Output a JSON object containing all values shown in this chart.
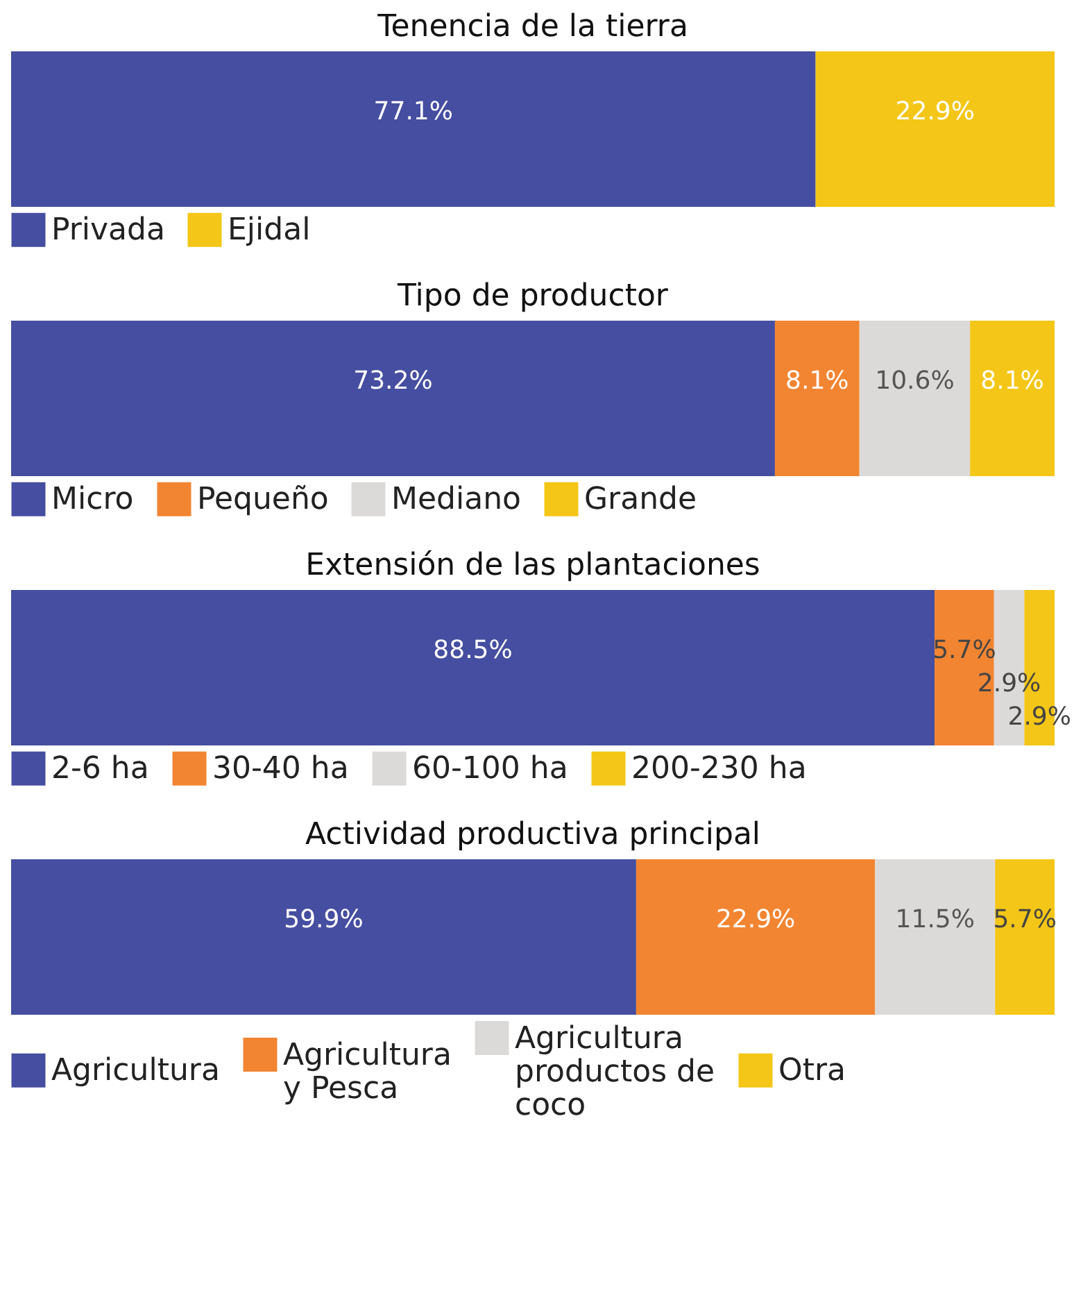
{
  "chart_data": [
    {
      "type": "bar",
      "title": "Tenencia de la tierra",
      "orientation": "horizontal",
      "stacked": true,
      "categories": [
        null
      ],
      "legend": "bottom",
      "series": [
        {
          "name": "Privada",
          "color": "#454ea0",
          "values": [
            77.1
          ],
          "value_labels": [
            "77.1%"
          ]
        },
        {
          "name": "Ejidal",
          "color": "#f4c617",
          "values": [
            22.9
          ],
          "value_labels": [
            "22.9%"
          ]
        }
      ]
    },
    {
      "type": "bar",
      "title": "Tipo de productor",
      "orientation": "horizontal",
      "stacked": true,
      "categories": [
        null
      ],
      "legend": "bottom",
      "series": [
        {
          "name": "Micro",
          "color": "#454ea0",
          "values": [
            73.2
          ],
          "value_labels": [
            "73.2%"
          ]
        },
        {
          "name": "Pequeño",
          "color": "#f28532",
          "values": [
            8.1
          ],
          "value_labels": [
            "8.1%"
          ]
        },
        {
          "name": "Mediano",
          "color": "#dcdad8",
          "values": [
            10.6
          ],
          "value_labels": [
            "10.6%"
          ]
        },
        {
          "name": "Grande",
          "color": "#f4c617",
          "values": [
            8.1
          ],
          "value_labels": [
            "8.1%"
          ]
        }
      ]
    },
    {
      "type": "bar",
      "title": "Extensión de las plantaciones",
      "orientation": "horizontal",
      "stacked": true,
      "categories": [
        null
      ],
      "legend": "bottom",
      "series": [
        {
          "name": "2-6 ha",
          "color": "#454ea0",
          "values": [
            88.5
          ],
          "value_labels": [
            "88.5%"
          ]
        },
        {
          "name": "30-40 ha",
          "color": "#f28532",
          "values": [
            5.7
          ],
          "value_labels": [
            "5.7%"
          ]
        },
        {
          "name": "60-100 ha",
          "color": "#dcdad8",
          "values": [
            2.9
          ],
          "value_labels": [
            "2.9%"
          ]
        },
        {
          "name": "200-230 ha",
          "color": "#f4c617",
          "values": [
            2.9
          ],
          "value_labels": [
            "2.9%"
          ]
        }
      ]
    },
    {
      "type": "bar",
      "title": "Actividad productiva principal",
      "orientation": "horizontal",
      "stacked": true,
      "categories": [
        null
      ],
      "legend": "bottom",
      "series": [
        {
          "name": "Agricultura",
          "color": "#454ea0",
          "values": [
            59.9
          ],
          "value_labels": [
            "59.9%"
          ]
        },
        {
          "name": "Agricultura y Pesca",
          "color": "#f28532",
          "values": [
            22.9
          ],
          "value_labels": [
            "22.9%"
          ]
        },
        {
          "name": "Agricultura productos de coco",
          "color": "#dcdad8",
          "values": [
            11.5
          ],
          "value_labels": [
            "11.5%"
          ]
        },
        {
          "name": "Otra",
          "color": "#f4c617",
          "values": [
            5.7
          ],
          "value_labels": [
            "5.7%"
          ]
        }
      ]
    }
  ]
}
